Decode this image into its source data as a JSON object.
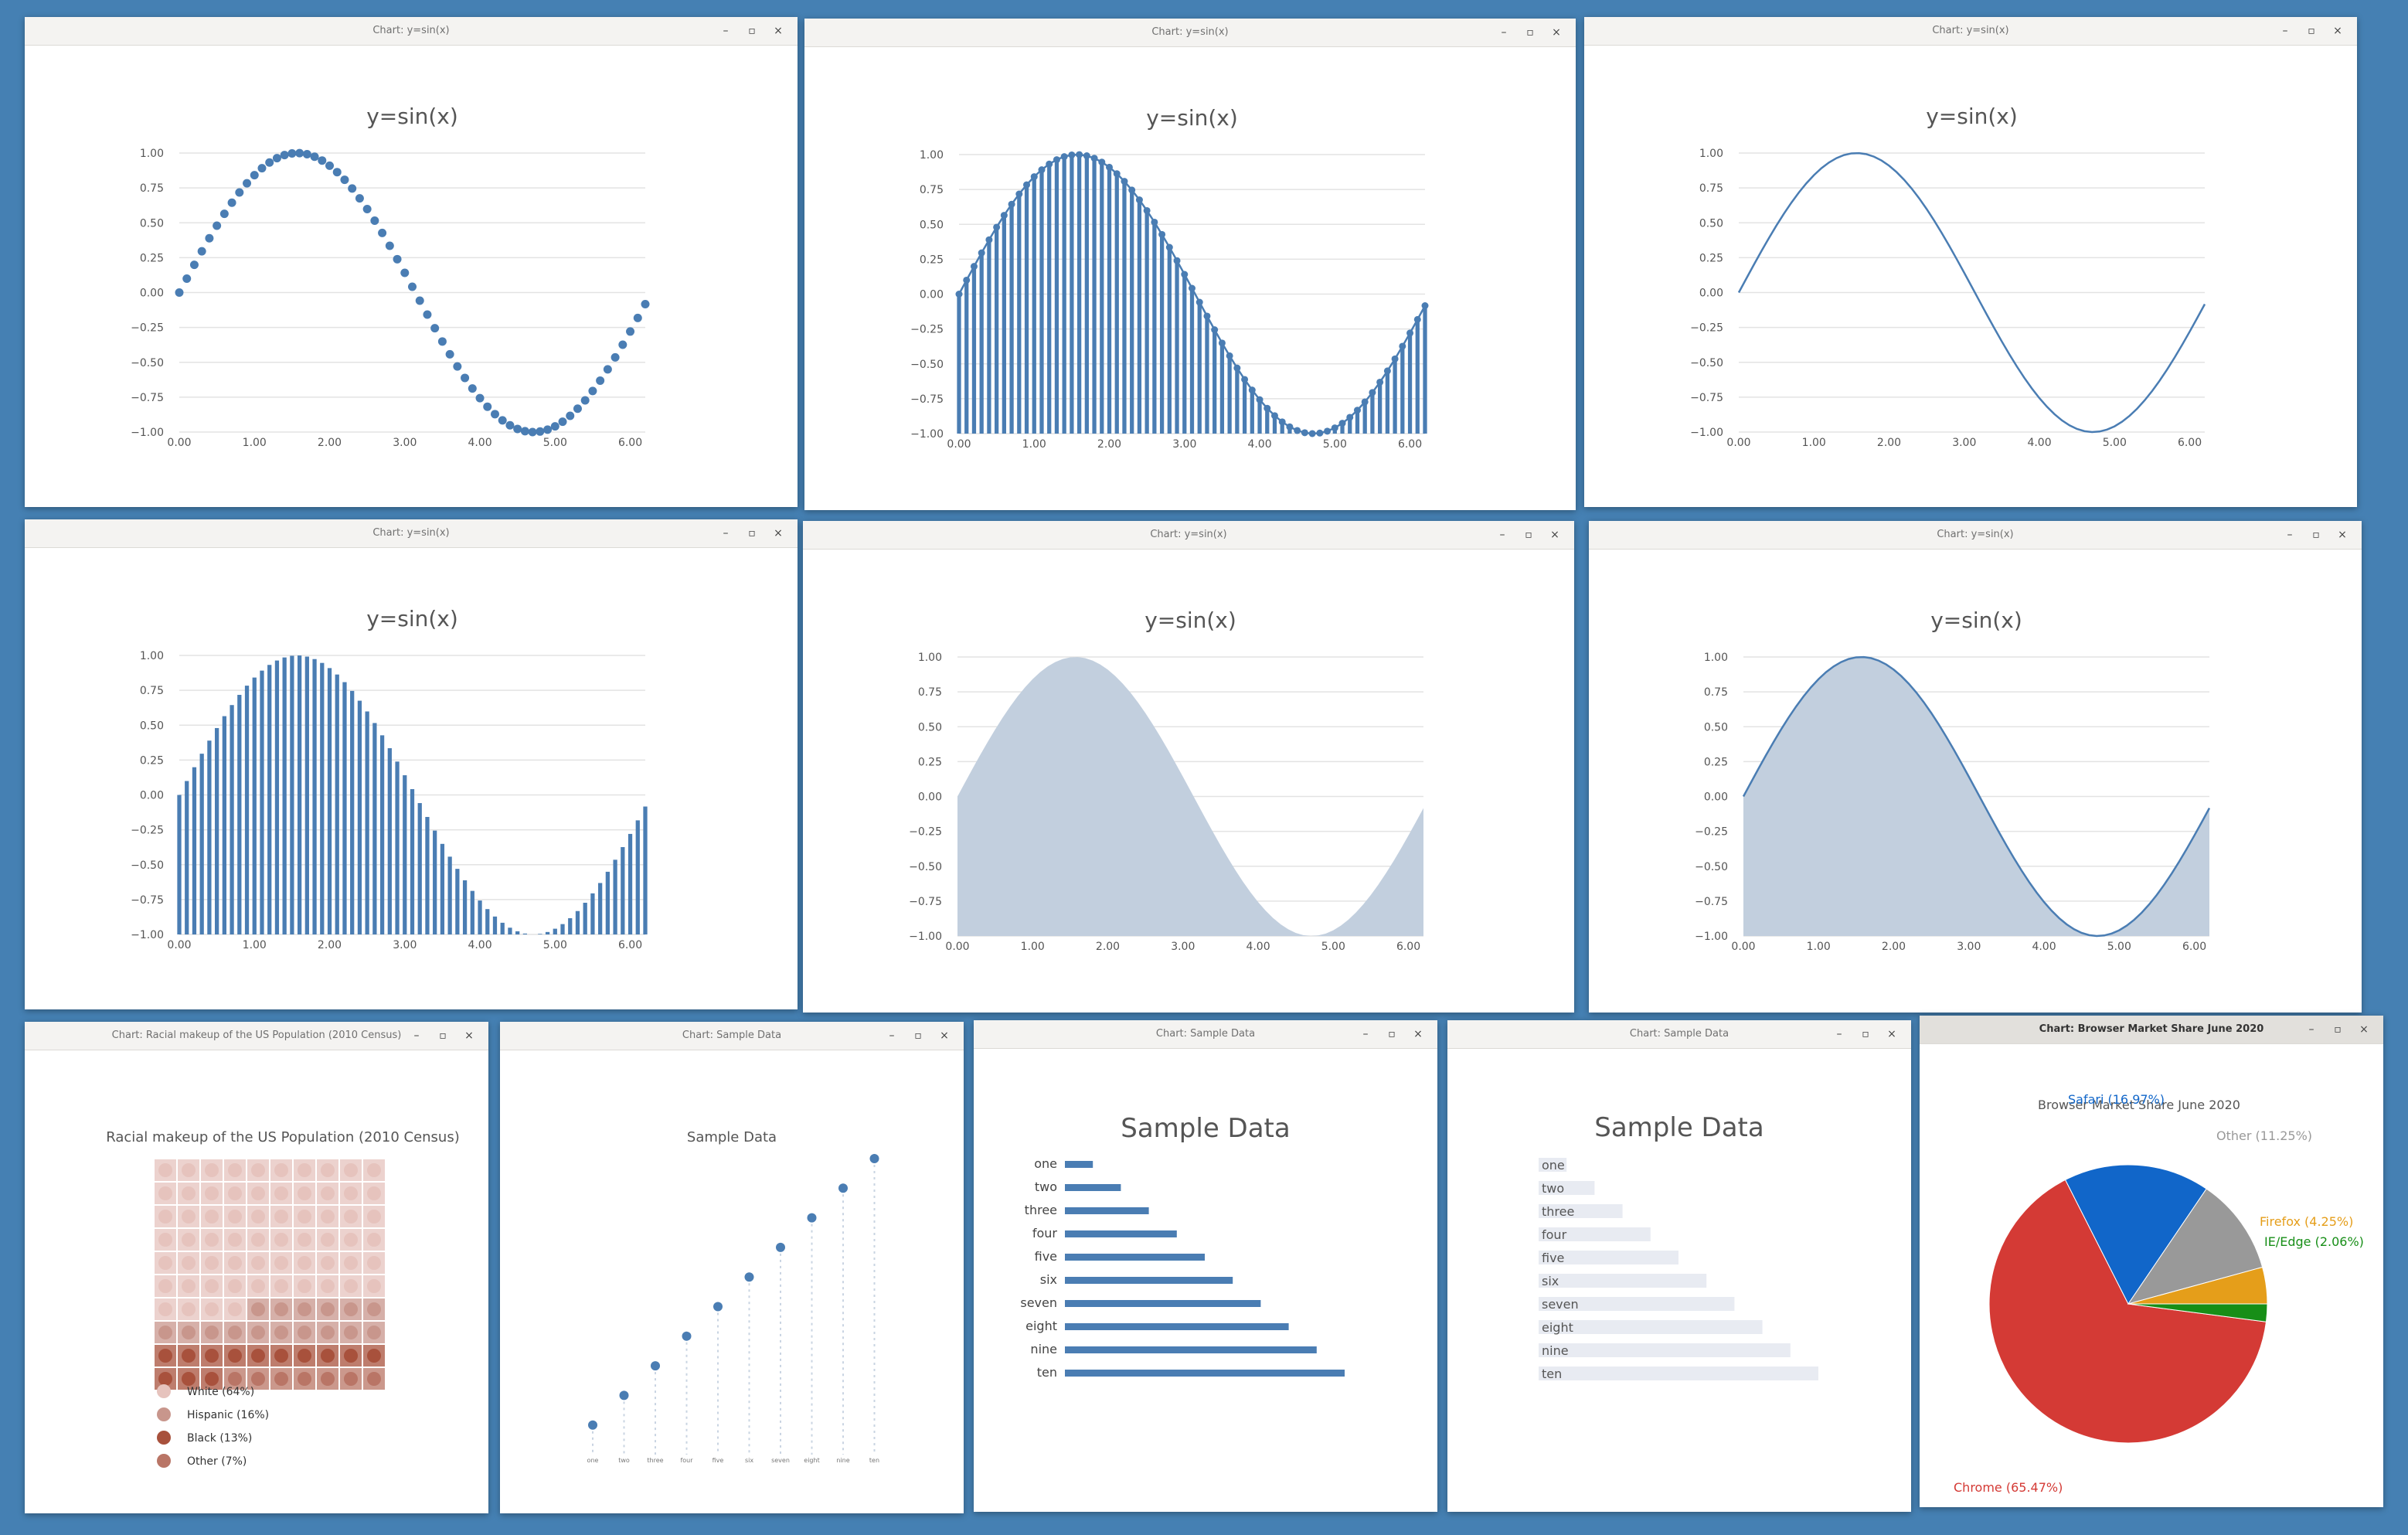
{
  "window_controls": {
    "minimize": "–",
    "maximize": "▫",
    "close": "×"
  },
  "sine_windows": [
    {
      "title": "Chart: y=sin(x)",
      "style": "scatter",
      "active": false
    },
    {
      "title": "Chart: y=sin(x)",
      "style": "bar-outline",
      "active": false
    },
    {
      "title": "Chart: y=sin(x)",
      "style": "line",
      "active": false
    },
    {
      "title": "Chart: y=sin(x)",
      "style": "bar",
      "active": false
    },
    {
      "title": "Chart: y=sin(x)",
      "style": "area",
      "active": false
    },
    {
      "title": "Chart: y=sin(x)",
      "style": "area-line",
      "active": false
    }
  ],
  "waffle_window": {
    "title": "Chart: Racial makeup of the US Population (2010 Census)",
    "active": false
  },
  "lollipop_window": {
    "title": "Chart: Sample Data",
    "active": false
  },
  "hbar_window": {
    "title": "Chart: Sample Data",
    "active": false
  },
  "track_window": {
    "title": "Chart: Sample Data",
    "active": false
  },
  "pie_window": {
    "title": "Chart: Browser Market Share June 2020",
    "active": true
  },
  "colors": {
    "series": "#4a7db3",
    "area_fill": "#c2cfde",
    "grid": "#e3e3e3",
    "track": "#e8ebf2",
    "white": "#e6c3bd",
    "hispanic": "#c8968c",
    "black": "#a8513c",
    "other": "#b97566",
    "chrome": "#d43a35",
    "safari": "#1166c9",
    "other_browser": "#999999",
    "firefox": "#e59e1a",
    "ie_edge": "#178e17"
  },
  "chart_data": [
    {
      "type": "scatter",
      "title": "y=sin(x)",
      "function": "sin(x)",
      "x_range": [
        0,
        6.2
      ],
      "x_step": 0.1,
      "xlim": [
        0,
        6.2
      ],
      "ylim": [
        -1,
        1
      ],
      "x_ticks": [
        "0.00",
        "1.00",
        "2.00",
        "3.00",
        "4.00",
        "5.00",
        "6.00"
      ],
      "y_ticks": [
        "1.00",
        "0.75",
        "0.50",
        "0.25",
        "0.00",
        "−0.25",
        "−0.50",
        "−0.75",
        "−1.00"
      ],
      "grid": true
    },
    {
      "type": "bar",
      "title": "y=sin(x)",
      "function": "sin(x)",
      "x_range": [
        0,
        6.2
      ],
      "x_step": 0.1,
      "xlim": [
        0,
        6.2
      ],
      "ylim": [
        -1,
        1
      ],
      "x_ticks": [
        "0.00",
        "1.00",
        "2.00",
        "3.00",
        "4.00",
        "5.00",
        "6.00"
      ],
      "y_ticks": [
        "1.00",
        "0.75",
        "0.50",
        "0.25",
        "0.00",
        "−0.25",
        "−0.50",
        "−0.75",
        "−1.00"
      ],
      "grid": true
    },
    {
      "type": "line",
      "title": "y=sin(x)",
      "function": "sin(x)",
      "x_range": [
        0,
        6.2
      ],
      "x_step": 0.1,
      "xlim": [
        0,
        6.2
      ],
      "ylim": [
        -1,
        1
      ],
      "x_ticks": [
        "0.00",
        "1.00",
        "2.00",
        "3.00",
        "4.00",
        "5.00",
        "6.00"
      ],
      "y_ticks": [
        "1.00",
        "0.75",
        "0.50",
        "0.25",
        "0.00",
        "−0.25",
        "−0.50",
        "−0.75",
        "−1.00"
      ],
      "grid": true
    },
    {
      "type": "bar",
      "title": "y=sin(x)",
      "function": "sin(x)",
      "x_range": [
        0,
        6.2
      ],
      "x_step": 0.1,
      "xlim": [
        0,
        6.2
      ],
      "ylim": [
        -1,
        1
      ],
      "x_ticks": [
        "0.00",
        "1.00",
        "2.00",
        "3.00",
        "4.00",
        "5.00",
        "6.00"
      ],
      "y_ticks": [
        "1.00",
        "0.75",
        "0.50",
        "0.25",
        "0.00",
        "−0.25",
        "−0.50",
        "−0.75",
        "−1.00"
      ],
      "grid": true
    },
    {
      "type": "area",
      "title": "y=sin(x)",
      "function": "sin(x)",
      "x_range": [
        0,
        6.2
      ],
      "x_step": 0.1,
      "xlim": [
        0,
        6.2
      ],
      "ylim": [
        -1,
        1
      ],
      "x_ticks": [
        "0.00",
        "1.00",
        "2.00",
        "3.00",
        "4.00",
        "5.00",
        "6.00"
      ],
      "y_ticks": [
        "1.00",
        "0.75",
        "0.50",
        "0.25",
        "0.00",
        "−0.25",
        "−0.50",
        "−0.75",
        "−1.00"
      ],
      "grid": true
    },
    {
      "type": "area",
      "title": "y=sin(x)",
      "function": "sin(x)",
      "x_range": [
        0,
        6.2
      ],
      "x_step": 0.1,
      "xlim": [
        0,
        6.2
      ],
      "ylim": [
        -1,
        1
      ],
      "x_ticks": [
        "0.00",
        "1.00",
        "2.00",
        "3.00",
        "4.00",
        "5.00",
        "6.00"
      ],
      "y_ticks": [
        "1.00",
        "0.75",
        "0.50",
        "0.25",
        "0.00",
        "−0.25",
        "−0.50",
        "−0.75",
        "−1.00"
      ],
      "grid": true
    },
    {
      "type": "waffle",
      "title": "Racial makeup of the US Population (2010 Census)",
      "grid_size": [
        10,
        10
      ],
      "categories": [
        "White (64%)",
        "Hispanic (16%)",
        "Black (13%)",
        "Other (7%)"
      ],
      "values": [
        64,
        16,
        13,
        7
      ]
    },
    {
      "type": "scatter",
      "title": "Sample Data",
      "categories": [
        "one",
        "two",
        "three",
        "four",
        "five",
        "six",
        "seven",
        "eight",
        "nine",
        "ten"
      ],
      "values": [
        1,
        2,
        3,
        4,
        5,
        6,
        7,
        8,
        9,
        10
      ],
      "ylim": [
        0,
        10
      ]
    },
    {
      "type": "bar",
      "orientation": "horizontal",
      "title": "Sample Data",
      "categories": [
        "one",
        "two",
        "three",
        "four",
        "five",
        "six",
        "seven",
        "eight",
        "nine",
        "ten"
      ],
      "values": [
        1,
        2,
        3,
        4,
        5,
        6,
        7,
        8,
        9,
        10
      ],
      "xlim": [
        0,
        10
      ]
    },
    {
      "type": "bar",
      "orientation": "horizontal",
      "title": "Sample Data",
      "categories": [
        "one",
        "two",
        "three",
        "four",
        "five",
        "six",
        "seven",
        "eight",
        "nine",
        "ten"
      ],
      "values": [
        1,
        2,
        3,
        4,
        5,
        6,
        7,
        8,
        9,
        10
      ],
      "xlim": [
        0,
        10
      ]
    },
    {
      "type": "pie",
      "title": "Browser Market Share June 2020",
      "categories": [
        "Chrome",
        "Safari",
        "Other",
        "Firefox",
        "IE/Edge"
      ],
      "labels": [
        "Chrome (65.47%)",
        "Safari (16.97%)",
        "Other (11.25%)",
        "Firefox (4.25%)",
        "IE/Edge (2.06%)"
      ],
      "values": [
        65.47,
        16.97,
        11.25,
        4.25,
        2.06
      ]
    }
  ]
}
